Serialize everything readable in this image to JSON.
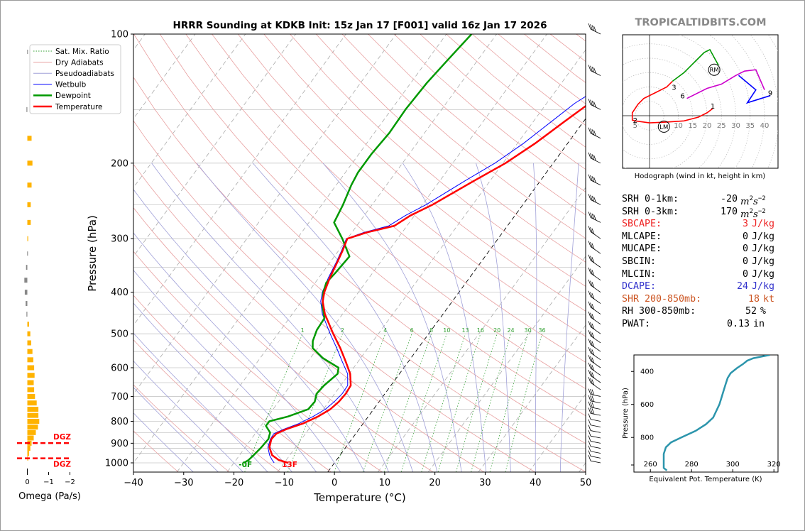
{
  "title": "HRRR Sounding at KDKB Init: 15z Jan 17 [F001] valid 16z Jan 17 2026",
  "brand": "TROPICALTIDBITS.COM",
  "colors": {
    "temperature": "#ff0000",
    "dewpoint": "#009900",
    "wetbulb": "#0000ff",
    "dry_adiabat": "#e8a0a0",
    "moist_adiabat": "#a0a0d8",
    "mixing_ratio": "#33a033",
    "omega": "#ffb300",
    "dgz": "#ff0000",
    "theta_e": "#2c95ac",
    "brand": "#888888"
  },
  "chart_data": [
    {
      "type": "line",
      "name": "skewt",
      "xlabel": "Temperature (°C)",
      "ylabel": "Pressure (hPa)",
      "xlim": [
        -40,
        50
      ],
      "ylim": [
        1050,
        100
      ],
      "y_scale": "log",
      "x_ticks": [
        -40,
        -30,
        -20,
        -10,
        0,
        10,
        20,
        30,
        40,
        50
      ],
      "y_ticks": [
        100,
        200,
        300,
        400,
        500,
        600,
        700,
        800,
        900,
        1000
      ],
      "legend": [
        "Sat. Mix. Ratio",
        "Dry Adiabats",
        "Pseudoadiabats",
        "Wetbulb",
        "Dewpoint",
        "Temperature"
      ],
      "legend_position": "upper-left",
      "mixing_ratio_labels": [
        "1",
        "2",
        "4",
        "6",
        "8",
        "10",
        "13",
        "16",
        "20",
        "24",
        "30",
        "36"
      ],
      "surface_labels": {
        "dewpoint": "-0F",
        "temperature": "13F"
      },
      "temperature": [
        {
          "p": 1000,
          "t": -9.2
        },
        {
          "p": 985,
          "t": -11.5
        },
        {
          "p": 960,
          "t": -13.5
        },
        {
          "p": 920,
          "t": -15.2
        },
        {
          "p": 880,
          "t": -16.0
        },
        {
          "p": 855,
          "t": -15.8
        },
        {
          "p": 835,
          "t": -14.5
        },
        {
          "p": 810,
          "t": -12.0
        },
        {
          "p": 780,
          "t": -10.0
        },
        {
          "p": 750,
          "t": -8.6
        },
        {
          "p": 720,
          "t": -8.0
        },
        {
          "p": 690,
          "t": -7.8
        },
        {
          "p": 660,
          "t": -8.0
        },
        {
          "p": 620,
          "t": -9.8
        },
        {
          "p": 580,
          "t": -12.5
        },
        {
          "p": 540,
          "t": -15.5
        },
        {
          "p": 500,
          "t": -19.0
        },
        {
          "p": 450,
          "t": -23.5
        },
        {
          "p": 420,
          "t": -25.8
        },
        {
          "p": 400,
          "t": -26.8
        },
        {
          "p": 370,
          "t": -27.8
        },
        {
          "p": 340,
          "t": -28.6
        },
        {
          "p": 320,
          "t": -29.2
        },
        {
          "p": 300,
          "t": -30.0
        },
        {
          "p": 290,
          "t": -27.0
        },
        {
          "p": 280,
          "t": -22.5
        },
        {
          "p": 265,
          "t": -20.8
        },
        {
          "p": 250,
          "t": -18.0
        },
        {
          "p": 220,
          "t": -13.2
        },
        {
          "p": 200,
          "t": -9.5
        },
        {
          "p": 180,
          "t": -6.5
        },
        {
          "p": 160,
          "t": -3.8
        },
        {
          "p": 145,
          "t": -1.5
        },
        {
          "p": 130,
          "t": 2.5
        },
        {
          "p": 120,
          "t": 5.5
        },
        {
          "p": 110,
          "t": 8.5
        },
        {
          "p": 100,
          "t": 11.5
        }
      ],
      "dewpoint": [
        {
          "p": 1000,
          "t": -18.0
        },
        {
          "p": 985,
          "t": -17.5
        },
        {
          "p": 960,
          "t": -17.2
        },
        {
          "p": 920,
          "t": -16.8
        },
        {
          "p": 880,
          "t": -16.6
        },
        {
          "p": 850,
          "t": -17.2
        },
        {
          "p": 820,
          "t": -19.0
        },
        {
          "p": 800,
          "t": -19.0
        },
        {
          "p": 780,
          "t": -16.0
        },
        {
          "p": 750,
          "t": -13.0
        },
        {
          "p": 720,
          "t": -12.8
        },
        {
          "p": 690,
          "t": -13.6
        },
        {
          "p": 660,
          "t": -13.3
        },
        {
          "p": 620,
          "t": -12.3
        },
        {
          "p": 600,
          "t": -13.0
        },
        {
          "p": 570,
          "t": -17.5
        },
        {
          "p": 540,
          "t": -21.0
        },
        {
          "p": 520,
          "t": -22.0
        },
        {
          "p": 490,
          "t": -22.8
        },
        {
          "p": 460,
          "t": -23.0
        },
        {
          "p": 430,
          "t": -25.2
        },
        {
          "p": 400,
          "t": -27.0
        },
        {
          "p": 380,
          "t": -27.8
        },
        {
          "p": 360,
          "t": -27.4
        },
        {
          "p": 330,
          "t": -27.0
        },
        {
          "p": 300,
          "t": -31.0
        },
        {
          "p": 275,
          "t": -35.0
        },
        {
          "p": 250,
          "t": -35.8
        },
        {
          "p": 225,
          "t": -37.0
        },
        {
          "p": 210,
          "t": -37.5
        },
        {
          "p": 190,
          "t": -37.5
        },
        {
          "p": 170,
          "t": -37.0
        },
        {
          "p": 150,
          "t": -37.2
        },
        {
          "p": 130,
          "t": -36.8
        },
        {
          "p": 115,
          "t": -36.0
        },
        {
          "p": 100,
          "t": -35.0
        }
      ],
      "wetbulb": [
        {
          "p": 1000,
          "t": -12.0
        },
        {
          "p": 985,
          "t": -12.8
        },
        {
          "p": 960,
          "t": -14.0
        },
        {
          "p": 920,
          "t": -15.5
        },
        {
          "p": 880,
          "t": -16.2
        },
        {
          "p": 855,
          "t": -16.3
        },
        {
          "p": 835,
          "t": -15.0
        },
        {
          "p": 810,
          "t": -12.8
        },
        {
          "p": 780,
          "t": -11.0
        },
        {
          "p": 750,
          "t": -9.6
        },
        {
          "p": 720,
          "t": -8.9
        },
        {
          "p": 690,
          "t": -8.5
        },
        {
          "p": 660,
          "t": -8.6
        },
        {
          "p": 620,
          "t": -10.3
        },
        {
          "p": 580,
          "t": -13.2
        },
        {
          "p": 540,
          "t": -16.2
        },
        {
          "p": 500,
          "t": -19.6
        },
        {
          "p": 450,
          "t": -24.0
        },
        {
          "p": 420,
          "t": -26.2
        },
        {
          "p": 400,
          "t": -27.2
        },
        {
          "p": 370,
          "t": -28.1
        },
        {
          "p": 340,
          "t": -28.8
        },
        {
          "p": 320,
          "t": -29.4
        },
        {
          "p": 300,
          "t": -30.2
        },
        {
          "p": 290,
          "t": -27.6
        },
        {
          "p": 280,
          "t": -23.6
        },
        {
          "p": 265,
          "t": -21.8
        },
        {
          "p": 250,
          "t": -19.3
        },
        {
          "p": 220,
          "t": -15.0
        },
        {
          "p": 200,
          "t": -11.6
        },
        {
          "p": 180,
          "t": -8.8
        },
        {
          "p": 160,
          "t": -6.4
        },
        {
          "p": 145,
          "t": -4.4
        },
        {
          "p": 130,
          "t": -0.9
        },
        {
          "p": 120,
          "t": 1.8
        },
        {
          "p": 110,
          "t": 4.6
        },
        {
          "p": 100,
          "t": 7.4
        }
      ],
      "wind_barbs_present": true
    },
    {
      "type": "bar",
      "name": "omega",
      "xlabel": "Omega (Pa/s)",
      "x_ticks": [
        "0",
        "−1",
        "−2"
      ],
      "dgz_labels": [
        "DGZ",
        "DGZ"
      ],
      "dgz_pressure": [
        899,
        976
      ],
      "values": [
        {
          "p": 110,
          "w": 0.01
        },
        {
          "p": 150,
          "w": 0.02
        },
        {
          "p": 175,
          "w": -0.1
        },
        {
          "p": 200,
          "w": -0.12
        },
        {
          "p": 225,
          "w": -0.1
        },
        {
          "p": 250,
          "w": -0.08
        },
        {
          "p": 275,
          "w": -0.08
        },
        {
          "p": 300,
          "w": -0.02
        },
        {
          "p": 325,
          "w": 0.01
        },
        {
          "p": 350,
          "w": 0.03
        },
        {
          "p": 375,
          "w": 0.07
        },
        {
          "p": 400,
          "w": 0.06
        },
        {
          "p": 425,
          "w": 0.04
        },
        {
          "p": 450,
          "w": 0.02
        },
        {
          "p": 475,
          "w": -0.04
        },
        {
          "p": 500,
          "w": -0.07
        },
        {
          "p": 525,
          "w": -0.09
        },
        {
          "p": 550,
          "w": -0.12
        },
        {
          "p": 575,
          "w": -0.14
        },
        {
          "p": 600,
          "w": -0.16
        },
        {
          "p": 625,
          "w": -0.17
        },
        {
          "p": 650,
          "w": -0.15
        },
        {
          "p": 675,
          "w": -0.16
        },
        {
          "p": 700,
          "w": -0.18
        },
        {
          "p": 725,
          "w": -0.22
        },
        {
          "p": 750,
          "w": -0.26
        },
        {
          "p": 775,
          "w": -0.26
        },
        {
          "p": 800,
          "w": -0.28
        },
        {
          "p": 825,
          "w": -0.25
        },
        {
          "p": 850,
          "w": -0.2
        },
        {
          "p": 875,
          "w": -0.15
        },
        {
          "p": 900,
          "w": -0.1
        },
        {
          "p": 925,
          "w": -0.07
        },
        {
          "p": 950,
          "w": -0.04
        },
        {
          "p": 975,
          "w": -0.02
        }
      ]
    },
    {
      "type": "line",
      "name": "hodograph",
      "xlabel": "Hodograph (wind in kt, height in km)",
      "ring_labels": [
        "5",
        "10",
        "15",
        "20",
        "25",
        "30",
        "35",
        "40"
      ],
      "height_labels": [
        "1",
        "2",
        "3",
        "6",
        "9"
      ],
      "markers": [
        "RM",
        "LM"
      ],
      "segments": [
        {
          "color": "#ff0000",
          "points": [
            [
              22,
              2.5
            ],
            [
              20,
              1
            ],
            [
              17,
              -0.5
            ],
            [
              12,
              -1.8
            ],
            [
              6,
              -2.2
            ],
            [
              0,
              -2.5
            ],
            [
              -5,
              -1.8
            ],
            [
              -6,
              -1.5
            ],
            [
              -6,
              1
            ],
            [
              -4,
              4
            ],
            [
              -2,
              6
            ],
            [
              2,
              8
            ],
            [
              6,
              10
            ],
            [
              8,
              12
            ]
          ]
        },
        {
          "color": "#009900",
          "points": [
            [
              8,
              12
            ],
            [
              12,
              15
            ],
            [
              15,
              18
            ],
            [
              17,
              20
            ],
            [
              19,
              22
            ],
            [
              21,
              23
            ],
            [
              24,
              17.5
            ]
          ]
        },
        {
          "color": "#cc00cc",
          "points": [
            [
              13,
              6
            ],
            [
              20,
              9.5
            ],
            [
              25,
              11
            ],
            [
              30,
              14
            ],
            [
              33,
              15.5
            ],
            [
              37,
              16
            ],
            [
              40,
              9
            ]
          ]
        },
        {
          "color": "#0000ff",
          "points": [
            [
              31,
              14
            ],
            [
              37,
              9
            ],
            [
              34,
              4.5
            ],
            [
              42,
              7
            ]
          ]
        }
      ]
    },
    {
      "type": "line",
      "name": "theta_e",
      "xlabel": "Equivalent Pot. Temperature (K)",
      "ylabel": "Pressure (hPa)",
      "x_ticks": [
        "260",
        "280",
        "300",
        "320"
      ],
      "y_ticks": [
        "400",
        "600",
        "800"
      ],
      "xlim": [
        252,
        322
      ],
      "ylim": [
        1010,
        300
      ],
      "points": [
        {
          "p": 1000,
          "t": 268
        },
        {
          "p": 985,
          "t": 266.5
        },
        {
          "p": 950,
          "t": 266.5
        },
        {
          "p": 900,
          "t": 266.5
        },
        {
          "p": 860,
          "t": 267.5
        },
        {
          "p": 830,
          "t": 270
        },
        {
          "p": 800,
          "t": 275
        },
        {
          "p": 760,
          "t": 282
        },
        {
          "p": 720,
          "t": 287
        },
        {
          "p": 680,
          "t": 290.5
        },
        {
          "p": 640,
          "t": 292
        },
        {
          "p": 600,
          "t": 293.5
        },
        {
          "p": 560,
          "t": 294.5
        },
        {
          "p": 520,
          "t": 295.5
        },
        {
          "p": 480,
          "t": 296.5
        },
        {
          "p": 440,
          "t": 297.5
        },
        {
          "p": 410,
          "t": 299
        },
        {
          "p": 380,
          "t": 302
        },
        {
          "p": 355,
          "t": 305
        },
        {
          "p": 335,
          "t": 307
        },
        {
          "p": 320,
          "t": 310
        },
        {
          "p": 310,
          "t": 314
        },
        {
          "p": 300,
          "t": 318
        }
      ]
    }
  ],
  "stats": [
    {
      "label": "SRH 0-1km:",
      "value": "-20",
      "unit": "m2s-2",
      "color": "#000000"
    },
    {
      "label": "SRH 0-3km:",
      "value": "170",
      "unit": "m2s-2",
      "color": "#000000"
    },
    {
      "label": "SBCAPE:",
      "value": "3",
      "unit": "J/kg",
      "color": "#ee2222"
    },
    {
      "label": "MLCAPE:",
      "value": "0",
      "unit": "J/kg",
      "color": "#000000"
    },
    {
      "label": "MUCAPE:",
      "value": "0",
      "unit": "J/kg",
      "color": "#000000"
    },
    {
      "label": "SBCIN:",
      "value": "0",
      "unit": "J/kg",
      "color": "#000000"
    },
    {
      "label": "MLCIN:",
      "value": "0",
      "unit": "J/kg",
      "color": "#000000"
    },
    {
      "label": "DCAPE:",
      "value": "24",
      "unit": "J/kg",
      "color": "#3333cc"
    },
    {
      "label": "SHR 200-850mb:",
      "value": "18",
      "unit": "kt",
      "color": "#cc5522"
    },
    {
      "label": "RH 300-850mb:",
      "value": "52",
      "unit": "%",
      "color": "#000000"
    },
    {
      "label": "PWAT:",
      "value": "0.13",
      "unit": "in",
      "color": "#000000"
    }
  ]
}
